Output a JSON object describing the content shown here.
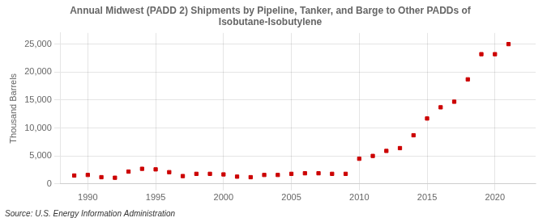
{
  "chart_data": {
    "type": "scatter",
    "title": "Annual Midwest (PADD 2) Shipments by Pipeline, Tanker, and Barge to Other PADDs of\nIsobutane-Isobutylene",
    "ylabel": "Thousand Barrels",
    "source": "Source: U.S. Energy Information Administration",
    "x": [
      1989,
      1990,
      1991,
      1992,
      1993,
      1994,
      1995,
      1996,
      1997,
      1998,
      1999,
      2000,
      2001,
      2002,
      2003,
      2004,
      2005,
      2006,
      2007,
      2008,
      2009,
      2010,
      2011,
      2012,
      2013,
      2014,
      2015,
      2016,
      2017,
      2018,
      2019,
      2020,
      2021
    ],
    "values": [
      1500,
      1600,
      1200,
      1100,
      2200,
      2700,
      2600,
      2100,
      1400,
      1800,
      1800,
      1700,
      1300,
      1200,
      1600,
      1600,
      1800,
      1900,
      1900,
      1800,
      1800,
      4500,
      5000,
      5900,
      6400,
      8700,
      11700,
      13700,
      14700,
      18700,
      23200,
      23200,
      25000
    ],
    "color": "#cc0000",
    "marker": "square",
    "xlim": [
      1988,
      2023
    ],
    "xticks": [
      1990,
      1995,
      2000,
      2005,
      2010,
      2015,
      2020
    ],
    "ylim": [
      0,
      27000
    ],
    "yticks": [
      0,
      {
        "value": 5000,
        "label": "5,000"
      },
      {
        "value": 10000,
        "label": "10,000"
      },
      {
        "value": 15000,
        "label": "15,000"
      },
      {
        "value": 20000,
        "label": "20,000"
      },
      {
        "value": 25000,
        "label": "25,000"
      }
    ],
    "grid": true
  }
}
